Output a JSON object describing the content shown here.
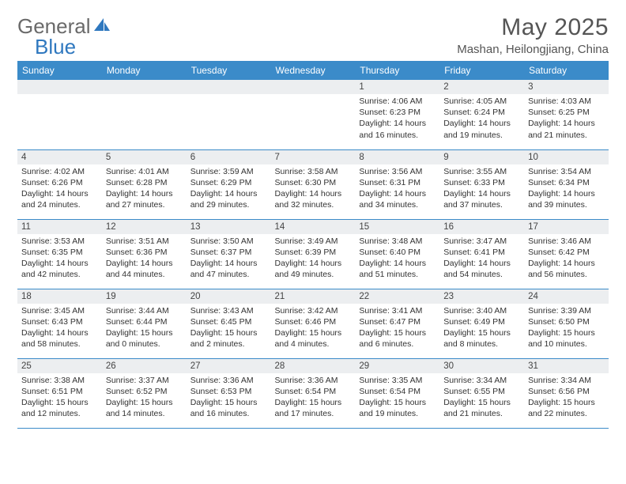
{
  "brand": {
    "part1": "General",
    "part2": "Blue"
  },
  "title": "May 2025",
  "location": "Mashan, Heilongjiang, China",
  "colors": {
    "header_bg": "#3b8bc9",
    "header_text": "#ffffff",
    "daynum_bg": "#eceef0",
    "row_border": "#3b8bc9",
    "brand_gray": "#6a6a6a",
    "brand_blue": "#2f78bf"
  },
  "day_headers": [
    "Sunday",
    "Monday",
    "Tuesday",
    "Wednesday",
    "Thursday",
    "Friday",
    "Saturday"
  ],
  "weeks": [
    [
      {
        "n": "",
        "sr": "",
        "ss": "",
        "dl": ""
      },
      {
        "n": "",
        "sr": "",
        "ss": "",
        "dl": ""
      },
      {
        "n": "",
        "sr": "",
        "ss": "",
        "dl": ""
      },
      {
        "n": "",
        "sr": "",
        "ss": "",
        "dl": ""
      },
      {
        "n": "1",
        "sr": "Sunrise: 4:06 AM",
        "ss": "Sunset: 6:23 PM",
        "dl": "Daylight: 14 hours and 16 minutes."
      },
      {
        "n": "2",
        "sr": "Sunrise: 4:05 AM",
        "ss": "Sunset: 6:24 PM",
        "dl": "Daylight: 14 hours and 19 minutes."
      },
      {
        "n": "3",
        "sr": "Sunrise: 4:03 AM",
        "ss": "Sunset: 6:25 PM",
        "dl": "Daylight: 14 hours and 21 minutes."
      }
    ],
    [
      {
        "n": "4",
        "sr": "Sunrise: 4:02 AM",
        "ss": "Sunset: 6:26 PM",
        "dl": "Daylight: 14 hours and 24 minutes."
      },
      {
        "n": "5",
        "sr": "Sunrise: 4:01 AM",
        "ss": "Sunset: 6:28 PM",
        "dl": "Daylight: 14 hours and 27 minutes."
      },
      {
        "n": "6",
        "sr": "Sunrise: 3:59 AM",
        "ss": "Sunset: 6:29 PM",
        "dl": "Daylight: 14 hours and 29 minutes."
      },
      {
        "n": "7",
        "sr": "Sunrise: 3:58 AM",
        "ss": "Sunset: 6:30 PM",
        "dl": "Daylight: 14 hours and 32 minutes."
      },
      {
        "n": "8",
        "sr": "Sunrise: 3:56 AM",
        "ss": "Sunset: 6:31 PM",
        "dl": "Daylight: 14 hours and 34 minutes."
      },
      {
        "n": "9",
        "sr": "Sunrise: 3:55 AM",
        "ss": "Sunset: 6:33 PM",
        "dl": "Daylight: 14 hours and 37 minutes."
      },
      {
        "n": "10",
        "sr": "Sunrise: 3:54 AM",
        "ss": "Sunset: 6:34 PM",
        "dl": "Daylight: 14 hours and 39 minutes."
      }
    ],
    [
      {
        "n": "11",
        "sr": "Sunrise: 3:53 AM",
        "ss": "Sunset: 6:35 PM",
        "dl": "Daylight: 14 hours and 42 minutes."
      },
      {
        "n": "12",
        "sr": "Sunrise: 3:51 AM",
        "ss": "Sunset: 6:36 PM",
        "dl": "Daylight: 14 hours and 44 minutes."
      },
      {
        "n": "13",
        "sr": "Sunrise: 3:50 AM",
        "ss": "Sunset: 6:37 PM",
        "dl": "Daylight: 14 hours and 47 minutes."
      },
      {
        "n": "14",
        "sr": "Sunrise: 3:49 AM",
        "ss": "Sunset: 6:39 PM",
        "dl": "Daylight: 14 hours and 49 minutes."
      },
      {
        "n": "15",
        "sr": "Sunrise: 3:48 AM",
        "ss": "Sunset: 6:40 PM",
        "dl": "Daylight: 14 hours and 51 minutes."
      },
      {
        "n": "16",
        "sr": "Sunrise: 3:47 AM",
        "ss": "Sunset: 6:41 PM",
        "dl": "Daylight: 14 hours and 54 minutes."
      },
      {
        "n": "17",
        "sr": "Sunrise: 3:46 AM",
        "ss": "Sunset: 6:42 PM",
        "dl": "Daylight: 14 hours and 56 minutes."
      }
    ],
    [
      {
        "n": "18",
        "sr": "Sunrise: 3:45 AM",
        "ss": "Sunset: 6:43 PM",
        "dl": "Daylight: 14 hours and 58 minutes."
      },
      {
        "n": "19",
        "sr": "Sunrise: 3:44 AM",
        "ss": "Sunset: 6:44 PM",
        "dl": "Daylight: 15 hours and 0 minutes."
      },
      {
        "n": "20",
        "sr": "Sunrise: 3:43 AM",
        "ss": "Sunset: 6:45 PM",
        "dl": "Daylight: 15 hours and 2 minutes."
      },
      {
        "n": "21",
        "sr": "Sunrise: 3:42 AM",
        "ss": "Sunset: 6:46 PM",
        "dl": "Daylight: 15 hours and 4 minutes."
      },
      {
        "n": "22",
        "sr": "Sunrise: 3:41 AM",
        "ss": "Sunset: 6:47 PM",
        "dl": "Daylight: 15 hours and 6 minutes."
      },
      {
        "n": "23",
        "sr": "Sunrise: 3:40 AM",
        "ss": "Sunset: 6:49 PM",
        "dl": "Daylight: 15 hours and 8 minutes."
      },
      {
        "n": "24",
        "sr": "Sunrise: 3:39 AM",
        "ss": "Sunset: 6:50 PM",
        "dl": "Daylight: 15 hours and 10 minutes."
      }
    ],
    [
      {
        "n": "25",
        "sr": "Sunrise: 3:38 AM",
        "ss": "Sunset: 6:51 PM",
        "dl": "Daylight: 15 hours and 12 minutes."
      },
      {
        "n": "26",
        "sr": "Sunrise: 3:37 AM",
        "ss": "Sunset: 6:52 PM",
        "dl": "Daylight: 15 hours and 14 minutes."
      },
      {
        "n": "27",
        "sr": "Sunrise: 3:36 AM",
        "ss": "Sunset: 6:53 PM",
        "dl": "Daylight: 15 hours and 16 minutes."
      },
      {
        "n": "28",
        "sr": "Sunrise: 3:36 AM",
        "ss": "Sunset: 6:54 PM",
        "dl": "Daylight: 15 hours and 17 minutes."
      },
      {
        "n": "29",
        "sr": "Sunrise: 3:35 AM",
        "ss": "Sunset: 6:54 PM",
        "dl": "Daylight: 15 hours and 19 minutes."
      },
      {
        "n": "30",
        "sr": "Sunrise: 3:34 AM",
        "ss": "Sunset: 6:55 PM",
        "dl": "Daylight: 15 hours and 21 minutes."
      },
      {
        "n": "31",
        "sr": "Sunrise: 3:34 AM",
        "ss": "Sunset: 6:56 PM",
        "dl": "Daylight: 15 hours and 22 minutes."
      }
    ]
  ]
}
